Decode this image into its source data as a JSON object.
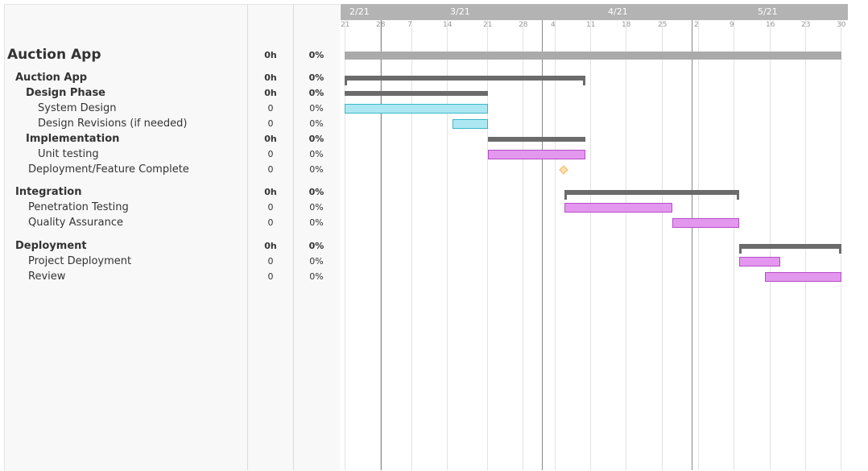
{
  "header": {
    "months": [
      "2/21",
      "3/21",
      "4/21",
      "5/21"
    ],
    "days": [
      "21",
      "28",
      "7",
      "14",
      "21",
      "28",
      "4",
      "11",
      "18",
      "25",
      "2",
      "9",
      "16",
      "23",
      "30"
    ]
  },
  "tasks": [
    {
      "name": "Auction App",
      "hours": "0h",
      "progress": "0%",
      "bar": "project",
      "start_day": 0,
      "end_day": 99
    },
    {
      "name": "Auction App",
      "hours": "0h",
      "progress": "0%",
      "bar": "summary",
      "start_day": 0,
      "end_day": 46
    },
    {
      "name": "Design Phase",
      "hours": "0h",
      "progress": "0%",
      "bar": "summary",
      "start_day": 0,
      "end_day": 27
    },
    {
      "name": "System Design",
      "hours": "0",
      "progress": "0%",
      "bar": "cyan",
      "start_day": 0,
      "end_day": 27
    },
    {
      "name": "Design Revisions (if needed)",
      "hours": "0",
      "progress": "0%",
      "bar": "cyan",
      "start_day": 21,
      "end_day": 27
    },
    {
      "name": "Implementation",
      "hours": "0h",
      "progress": "0%",
      "bar": "summary",
      "start_day": 28,
      "end_day": 46
    },
    {
      "name": "Unit testing",
      "hours": "0",
      "progress": "0%",
      "bar": "purple",
      "start_day": 28,
      "end_day": 46
    },
    {
      "name": "Deployment/Feature Complete",
      "hours": "0",
      "progress": "0%",
      "bar": "milestone",
      "start_day": 42,
      "end_day": 42
    },
    {
      "name": "Integration",
      "hours": "0h",
      "progress": "0%",
      "bar": "summary",
      "start_day": 43,
      "end_day": 76
    },
    {
      "name": "Penetration Testing",
      "hours": "0",
      "progress": "0%",
      "bar": "purple",
      "start_day": 43,
      "end_day": 63
    },
    {
      "name": "Quality Assurance",
      "hours": "0",
      "progress": "0%",
      "bar": "purple",
      "start_day": 64,
      "end_day": 76
    },
    {
      "name": "Deployment",
      "hours": "0h",
      "progress": "0%",
      "bar": "summary",
      "start_day": 77,
      "end_day": 99
    },
    {
      "name": "Project Deployment",
      "hours": "0",
      "progress": "0%",
      "bar": "purple",
      "start_day": 77,
      "end_day": 84
    },
    {
      "name": "Review",
      "hours": "0",
      "progress": "0%",
      "bar": "purple",
      "start_day": 82,
      "end_day": 99
    }
  ],
  "colors": {
    "header": "#b3b3b3",
    "project_bar": "#aaaaaa",
    "summary_bar": "#6b6b6b",
    "cyan_fill": "#ade8f2",
    "cyan_border": "#3ab7c7",
    "purple_fill": "#e397ee",
    "purple_border": "#b64ec9",
    "milestone": "#f0b860"
  }
}
